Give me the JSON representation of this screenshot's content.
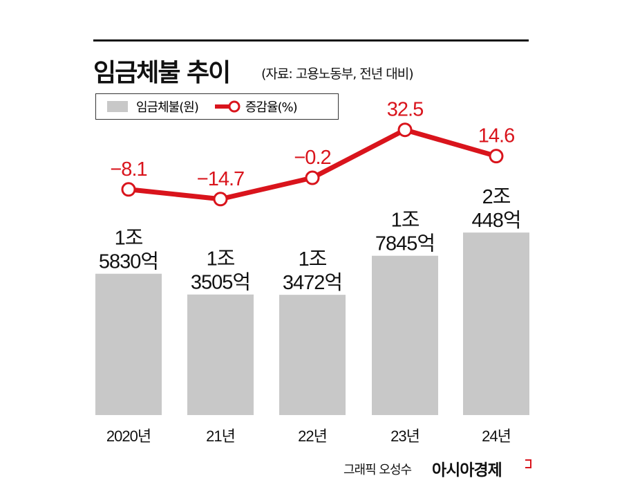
{
  "header": {
    "title": "임금체불 추이",
    "source": "(자료: 고용노동부, 전년 대비)"
  },
  "legend": {
    "bar_label": "임금체불(원)",
    "line_label": "증감율(%)"
  },
  "footer": {
    "credit": "그래픽 오성수",
    "brand": "아시아경제"
  },
  "colors": {
    "bar": "#c8c8c8",
    "line": "#d9141c"
  },
  "chart_data": {
    "type": "bar+line",
    "categories": [
      "2020년",
      "21년",
      "22년",
      "23년",
      "24년"
    ],
    "series": [
      {
        "name": "임금체불(원)",
        "type": "bar",
        "values_eok": [
          15830,
          13505,
          13472,
          17845,
          20448
        ],
        "labels": [
          [
            "1조",
            "5830억"
          ],
          [
            "1조",
            "3505억"
          ],
          [
            "1조",
            "3472억"
          ],
          [
            "1조",
            "7845억"
          ],
          [
            "2조",
            "448억"
          ]
        ]
      },
      {
        "name": "증감율(%)",
        "type": "line",
        "values": [
          -8.1,
          -14.7,
          -0.2,
          32.5,
          14.6
        ],
        "labels": [
          "−8.1",
          "−14.7",
          "−0.2",
          "32.5",
          "14.6"
        ]
      }
    ],
    "grid": false,
    "legend_position": "top-left"
  }
}
